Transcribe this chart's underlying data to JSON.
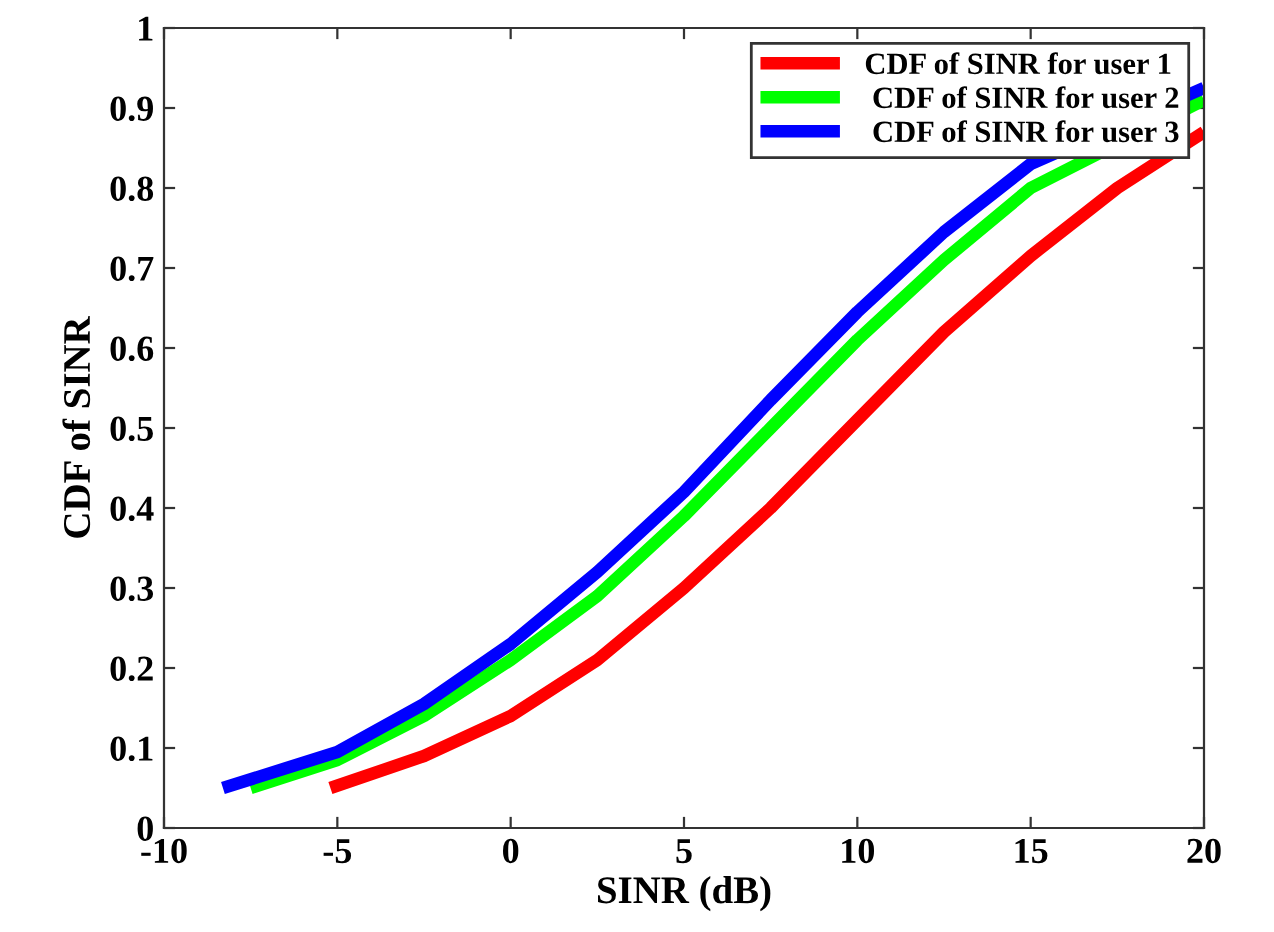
{
  "chart_data": {
    "type": "line",
    "xlabel": "SINR (dB)",
    "ylabel": "CDF of SINR",
    "xlim": [
      -10,
      20
    ],
    "ylim": [
      0,
      1
    ],
    "xticks": [
      -10,
      -5,
      0,
      5,
      10,
      15,
      20
    ],
    "yticks": [
      0,
      0.1,
      0.2,
      0.3,
      0.4,
      0.5,
      0.6,
      0.7,
      0.8,
      0.9,
      1
    ],
    "grid": false,
    "legend": "top right",
    "line_style": "solid",
    "marker": "none",
    "series": [
      {
        "name": "CDF of SINR for user 1",
        "color": "#ff0000",
        "x": [
          -5.2,
          -2.5,
          0,
          2.5,
          5,
          7.5,
          10,
          12.5,
          15,
          17.5,
          20
        ],
        "values": [
          0.05,
          0.09,
          0.14,
          0.21,
          0.3,
          0.4,
          0.51,
          0.62,
          0.715,
          0.8,
          0.87
        ]
      },
      {
        "name": " CDF of SINR for user 2",
        "color": "#00ff00",
        "x": [
          -7.5,
          -5,
          -2.5,
          0,
          2.5,
          5,
          7.5,
          10,
          12.5,
          15,
          20
        ],
        "values": [
          0.05,
          0.085,
          0.14,
          0.21,
          0.29,
          0.39,
          0.5,
          0.61,
          0.71,
          0.8,
          0.91
        ]
      },
      {
        "name": " CDF of SINR for user 3",
        "color": "#0000ff",
        "x": [
          -8.3,
          -5,
          -2.5,
          0,
          2.5,
          5,
          7.5,
          10,
          12.5,
          15,
          20
        ],
        "values": [
          0.05,
          0.095,
          0.155,
          0.23,
          0.32,
          0.42,
          0.535,
          0.645,
          0.745,
          0.83,
          0.925
        ]
      }
    ]
  }
}
